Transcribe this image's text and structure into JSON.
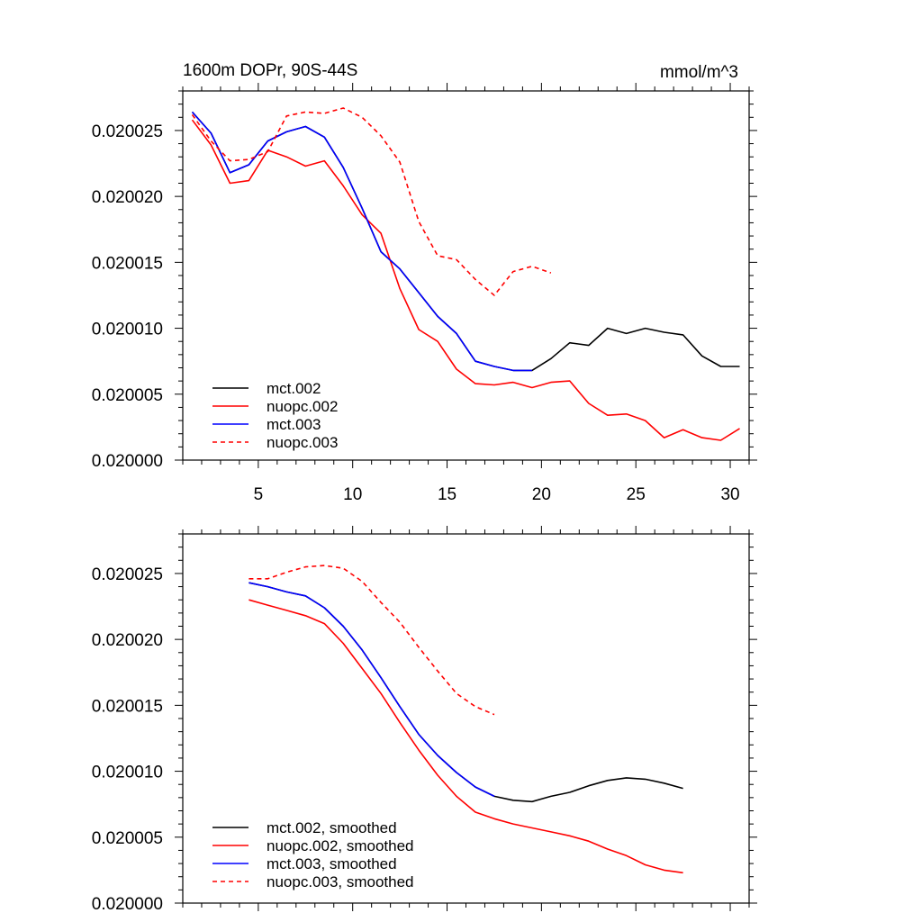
{
  "title_left": "1600m DOPr, 90S-44S",
  "title_right": "mmol/m^3",
  "chart_data": [
    {
      "type": "line",
      "title": "1600m DOPr, 90S-44S",
      "units": "mmol/m^3",
      "xlim": [
        1,
        31
      ],
      "ylim": [
        0.02,
        0.020028
      ],
      "xticks": [
        5,
        10,
        15,
        20,
        25,
        30
      ],
      "xtick_labels": [
        "5",
        "10",
        "15",
        "20",
        "25",
        "30"
      ],
      "yticks": [
        0.02,
        0.020005,
        0.02001,
        0.020015,
        0.02002,
        0.020025
      ],
      "ytick_labels": [
        "0.020000",
        "0.020005",
        "0.020010",
        "0.020015",
        "0.020020",
        "0.020025"
      ],
      "legend_position": "bottom-left",
      "series": [
        {
          "name": "mct.002",
          "color": "#000000",
          "dash": "solid",
          "x": [
            1.5,
            2.5,
            3.5,
            4.5,
            5.5,
            6.5,
            7.5,
            8.5,
            9.5,
            10.5,
            11.5,
            12.5,
            13.5,
            14.5,
            15.5,
            16.5,
            17.5,
            18.5,
            19.5,
            20.5,
            21.5,
            22.5,
            23.5,
            24.5,
            25.5,
            26.5,
            27.5,
            28.5,
            29.5,
            30.5
          ],
          "values": [
            0.0200264,
            0.0200248,
            0.0200218,
            0.0200224,
            0.0200242,
            0.0200249,
            0.0200253,
            0.0200245,
            0.0200222,
            0.0200191,
            0.0200158,
            0.0200145,
            0.0200127,
            0.0200109,
            0.0200096,
            0.0200075,
            0.0200071,
            0.0200068,
            0.0200068,
            0.0200077,
            0.0200089,
            0.0200087,
            0.02001,
            0.0200096,
            0.02001,
            0.0200097,
            0.0200095,
            0.0200079,
            0.0200071,
            0.0200071
          ]
        },
        {
          "name": "nuopc.002",
          "color": "#ff0000",
          "dash": "solid",
          "x": [
            1.5,
            2.5,
            3.5,
            4.5,
            5.5,
            6.5,
            7.5,
            8.5,
            9.5,
            10.5,
            11.5,
            12.5,
            13.5,
            14.5,
            15.5,
            16.5,
            17.5,
            18.5,
            19.5,
            20.5,
            21.5,
            22.5,
            23.5,
            24.5,
            25.5,
            26.5,
            27.5,
            28.5,
            29.5,
            30.5
          ],
          "values": [
            0.0200258,
            0.0200239,
            0.020021,
            0.0200212,
            0.0200235,
            0.020023,
            0.0200223,
            0.0200227,
            0.0200208,
            0.0200186,
            0.0200172,
            0.020013,
            0.0200099,
            0.020009,
            0.0200069,
            0.0200058,
            0.0200057,
            0.0200059,
            0.0200055,
            0.0200059,
            0.020006,
            0.0200043,
            0.0200034,
            0.0200035,
            0.020003,
            0.0200017,
            0.0200023,
            0.0200017,
            0.0200015,
            0.0200024
          ]
        },
        {
          "name": "mct.003",
          "color": "#0000ff",
          "dash": "solid",
          "x": [
            1.5,
            2.5,
            3.5,
            4.5,
            5.5,
            6.5,
            7.5,
            8.5,
            9.5,
            10.5,
            11.5,
            12.5,
            13.5,
            14.5,
            15.5,
            16.5,
            17.5,
            18.5,
            19.5
          ],
          "values": [
            0.0200264,
            0.0200248,
            0.0200218,
            0.0200224,
            0.0200242,
            0.0200249,
            0.0200253,
            0.0200245,
            0.0200222,
            0.0200191,
            0.0200158,
            0.0200145,
            0.0200127,
            0.0200109,
            0.0200096,
            0.0200075,
            0.0200071,
            0.0200068,
            0.0200068
          ]
        },
        {
          "name": "nuopc.003",
          "color": "#ff0000",
          "dash": "dashed",
          "x": [
            1.5,
            2.5,
            3.5,
            4.5,
            5.5,
            6.5,
            7.5,
            8.5,
            9.5,
            10.5,
            11.5,
            12.5,
            13.5,
            14.5,
            15.5,
            16.5,
            17.5,
            18.5,
            19.5,
            20.5
          ],
          "values": [
            0.0200262,
            0.0200242,
            0.0200227,
            0.0200228,
            0.0200234,
            0.0200261,
            0.0200264,
            0.0200263,
            0.0200267,
            0.020026,
            0.0200246,
            0.0200226,
            0.0200181,
            0.0200155,
            0.0200152,
            0.0200137,
            0.0200125,
            0.0200143,
            0.0200147,
            0.0200142
          ]
        }
      ]
    },
    {
      "type": "line",
      "xlim": [
        1,
        31
      ],
      "ylim": [
        0.02,
        0.020028
      ],
      "xticks": [
        5,
        10,
        15,
        20,
        25,
        30
      ],
      "yticks": [
        0.02,
        0.020005,
        0.02001,
        0.020015,
        0.02002,
        0.020025
      ],
      "ytick_labels": [
        "0.020000",
        "0.020005",
        "0.020010",
        "0.020015",
        "0.020020",
        "0.020025"
      ],
      "legend_position": "bottom-left",
      "series": [
        {
          "name": "mct.002, smoothed",
          "color": "#000000",
          "dash": "solid",
          "x": [
            4.5,
            5.5,
            6.5,
            7.5,
            8.5,
            9.5,
            10.5,
            11.5,
            12.5,
            13.5,
            14.5,
            15.5,
            16.5,
            17.5,
            18.5,
            19.5,
            20.5,
            21.5,
            22.5,
            23.5,
            24.5,
            25.5,
            26.5,
            27.5
          ],
          "values": [
            0.0200243,
            0.020024,
            0.0200236,
            0.0200233,
            0.0200224,
            0.020021,
            0.0200192,
            0.0200171,
            0.0200149,
            0.0200128,
            0.0200112,
            0.0200099,
            0.0200088,
            0.0200081,
            0.0200078,
            0.0200077,
            0.0200081,
            0.0200084,
            0.0200089,
            0.0200093,
            0.0200095,
            0.0200094,
            0.0200091,
            0.0200087
          ]
        },
        {
          "name": "nuopc.002, smoothed",
          "color": "#ff0000",
          "dash": "solid",
          "x": [
            4.5,
            5.5,
            6.5,
            7.5,
            8.5,
            9.5,
            10.5,
            11.5,
            12.5,
            13.5,
            14.5,
            15.5,
            16.5,
            17.5,
            18.5,
            19.5,
            20.5,
            21.5,
            22.5,
            23.5,
            24.5,
            25.5,
            26.5,
            27.5
          ],
          "values": [
            0.020023,
            0.0200226,
            0.0200222,
            0.0200218,
            0.0200212,
            0.0200197,
            0.0200178,
            0.0200159,
            0.0200137,
            0.0200116,
            0.0200097,
            0.0200081,
            0.0200069,
            0.0200064,
            0.020006,
            0.0200057,
            0.0200054,
            0.0200051,
            0.0200047,
            0.0200041,
            0.0200036,
            0.0200029,
            0.0200025,
            0.0200023
          ]
        },
        {
          "name": "mct.003, smoothed",
          "color": "#0000ff",
          "dash": "solid",
          "x": [
            4.5,
            5.5,
            6.5,
            7.5,
            8.5,
            9.5,
            10.5,
            11.5,
            12.5,
            13.5,
            14.5,
            15.5,
            16.5,
            17.5
          ],
          "values": [
            0.0200243,
            0.020024,
            0.0200236,
            0.0200233,
            0.0200224,
            0.020021,
            0.0200192,
            0.0200171,
            0.0200149,
            0.0200128,
            0.0200112,
            0.0200099,
            0.0200088,
            0.0200081
          ]
        },
        {
          "name": "nuopc.003, smoothed",
          "color": "#ff0000",
          "dash": "dashed",
          "x": [
            4.5,
            5.5,
            6.5,
            7.5,
            8.5,
            9.5,
            10.5,
            11.5,
            12.5,
            13.5,
            14.5,
            15.5,
            16.5,
            17.5
          ],
          "values": [
            0.0200246,
            0.0200246,
            0.0200251,
            0.0200255,
            0.0200256,
            0.0200254,
            0.0200244,
            0.0200228,
            0.0200213,
            0.0200194,
            0.0200176,
            0.0200159,
            0.0200149,
            0.0200143
          ]
        }
      ]
    }
  ]
}
